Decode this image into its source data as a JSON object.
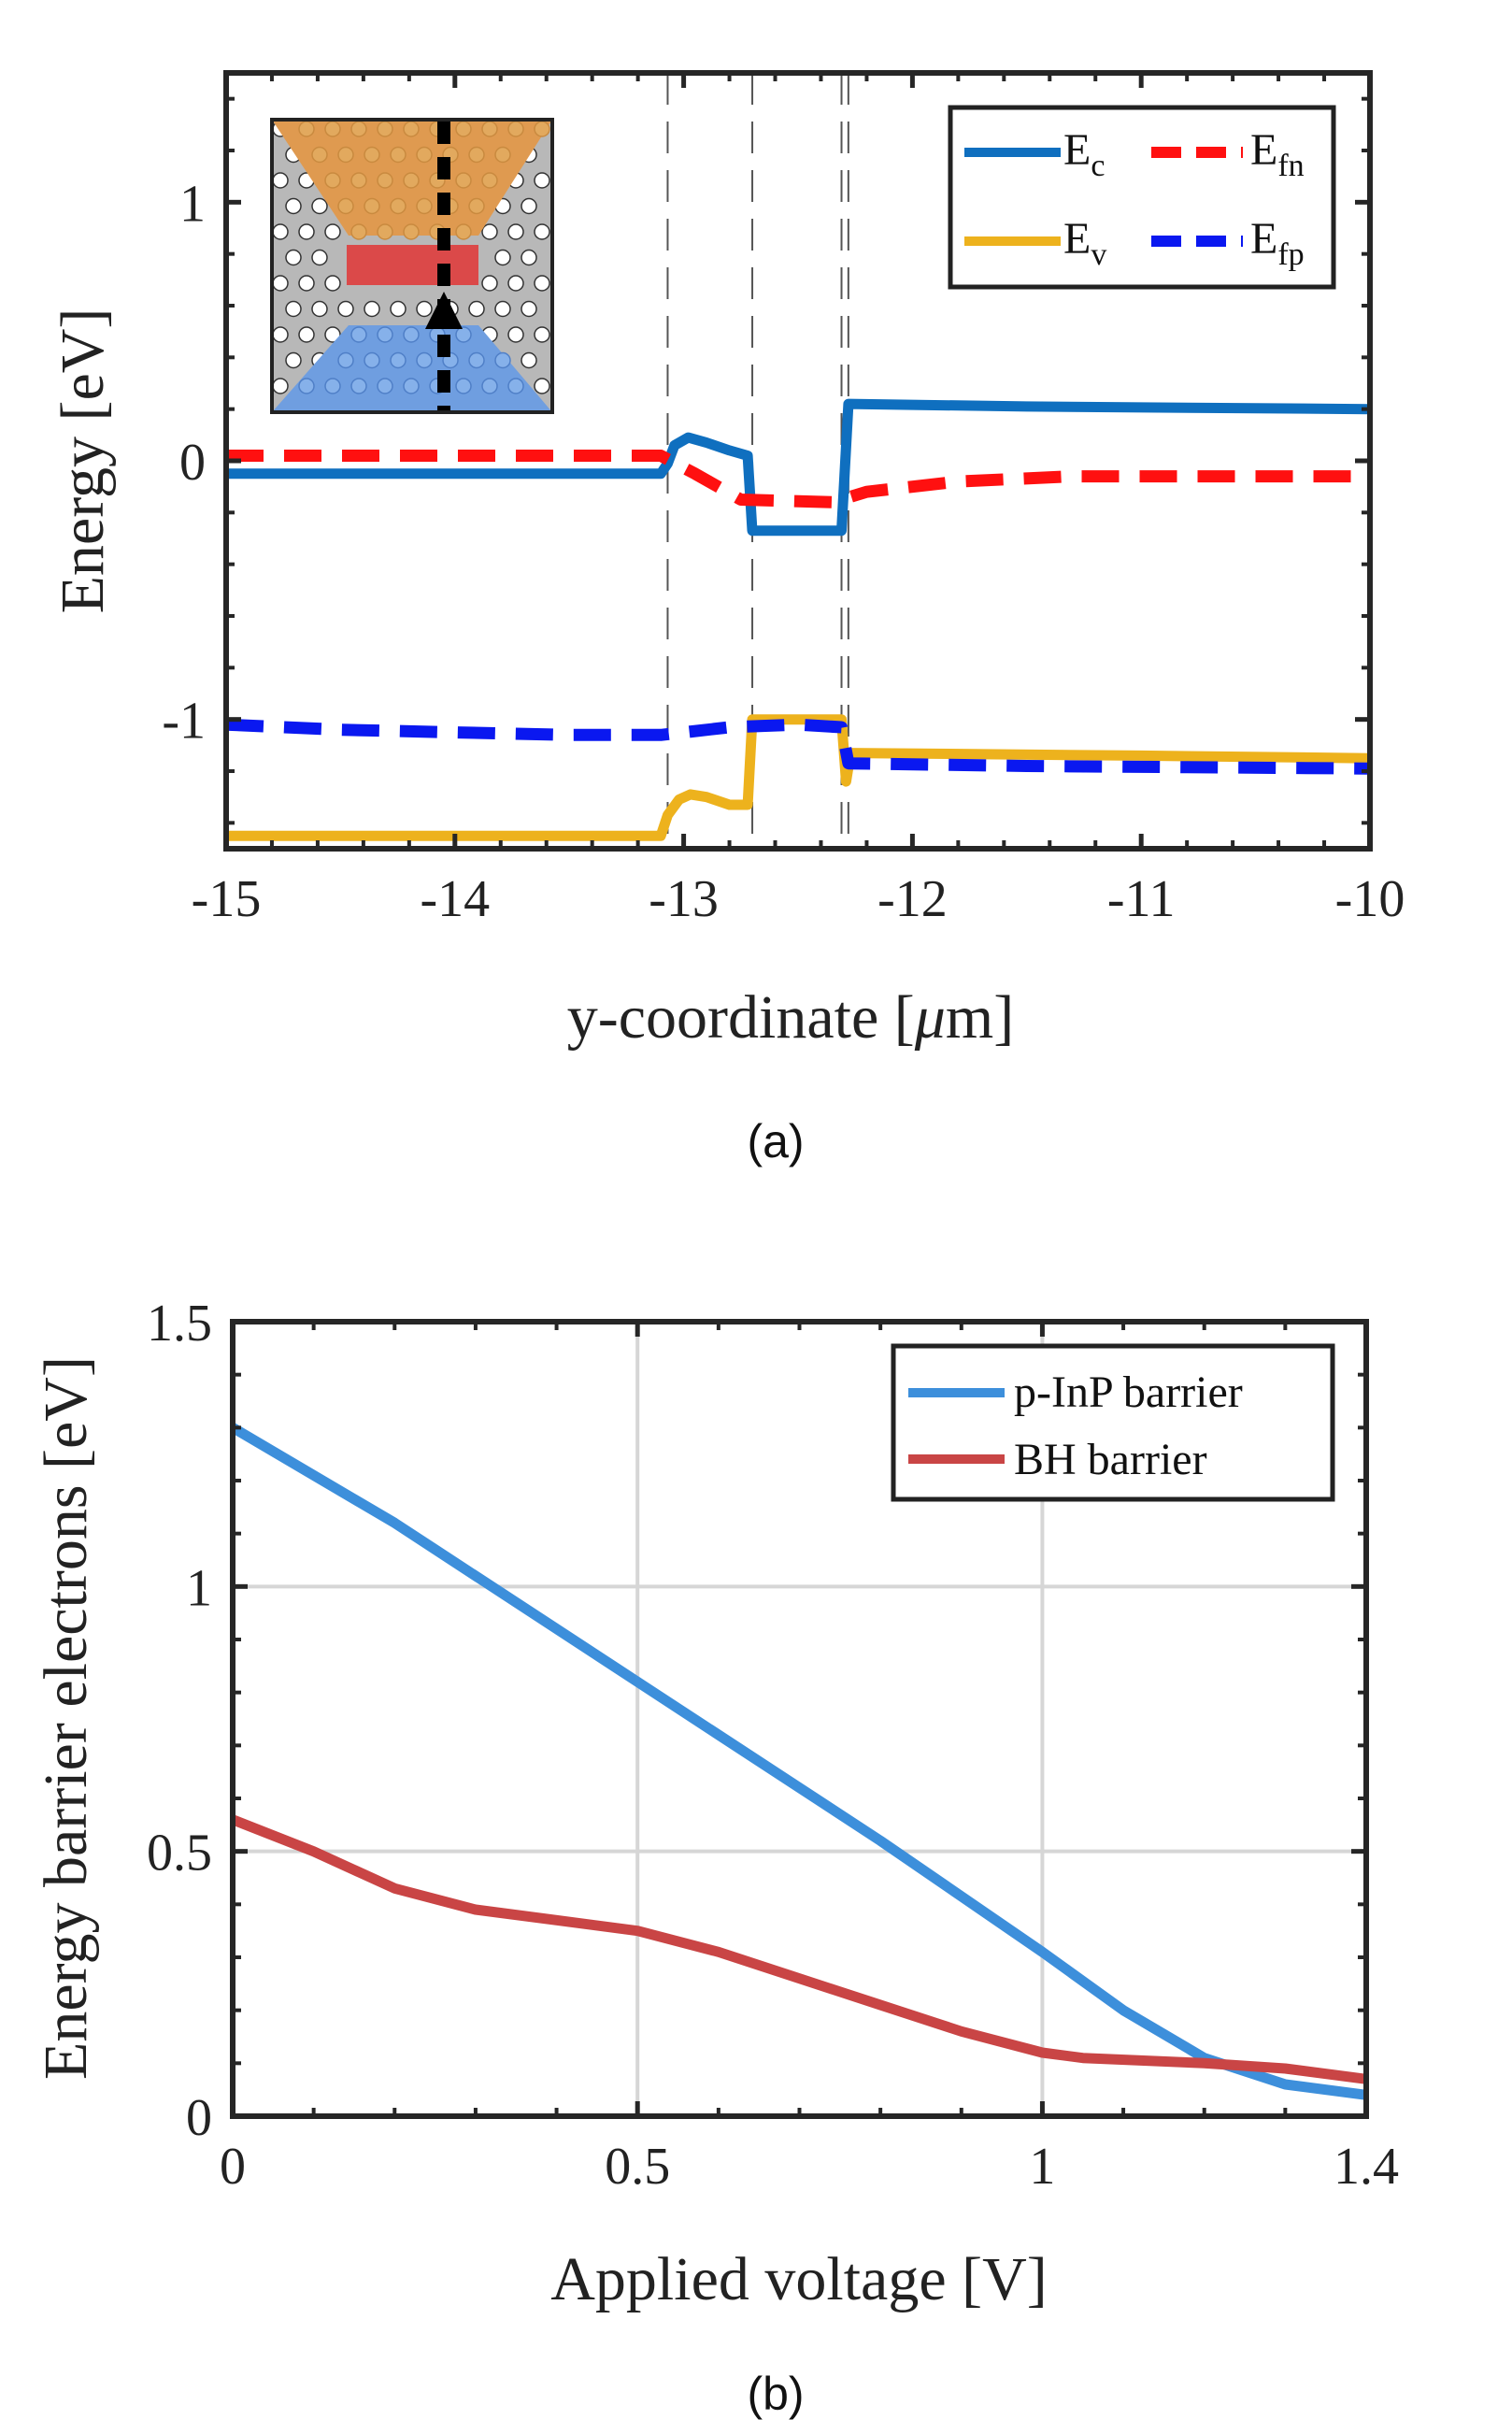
{
  "chart_data": [
    {
      "id": "a",
      "type": "line",
      "caption": "(a)",
      "xlabel": "y-coordinate [",
      "xlabel_unit_mu": "μ",
      "xlabel_unit_rest": "m]",
      "ylabel": "Energy [eV]",
      "xlim": [
        -15,
        -10
      ],
      "ylim": [
        -1.5,
        1.5
      ],
      "xticks": [
        -15,
        -14,
        -13,
        -12,
        -11,
        -10
      ],
      "xtick_labels": [
        "-15",
        "-14",
        "-13",
        "-12",
        "-11",
        "-10"
      ],
      "yticks": [
        -1,
        0,
        1
      ],
      "ytick_labels": [
        "-1",
        "0",
        "1"
      ],
      "vlines": [
        -13.07,
        -12.7,
        -12.31,
        -12.28
      ],
      "legend": {
        "position": "top-right",
        "entries": [
          {
            "main": "E",
            "sub": "c"
          },
          {
            "main": "E",
            "sub": "fn"
          },
          {
            "main": "E",
            "sub": "v"
          },
          {
            "main": "E",
            "sub": "fp"
          }
        ]
      },
      "colors": {
        "Ec": "#0f6fbf",
        "Ev": "#edb21d",
        "Efn": "#ff1010",
        "Efp": "#0a18f0"
      },
      "series": [
        {
          "name": "Ec",
          "style": "solid",
          "points": [
            [
              -15,
              -0.05
            ],
            [
              -13.1,
              -0.05
            ],
            [
              -13.07,
              -0.01
            ],
            [
              -13.04,
              0.06
            ],
            [
              -12.98,
              0.09
            ],
            [
              -12.9,
              0.07
            ],
            [
              -12.8,
              0.04
            ],
            [
              -12.72,
              0.02
            ],
            [
              -12.7,
              -0.27
            ],
            [
              -12.31,
              -0.27
            ],
            [
              -12.28,
              0.22
            ],
            [
              -11.5,
              0.21
            ],
            [
              -10,
              0.2
            ]
          ]
        },
        {
          "name": "Efn",
          "style": "dashed",
          "points": [
            [
              -15,
              0.02
            ],
            [
              -13.1,
              0.02
            ],
            [
              -12.95,
              -0.05
            ],
            [
              -12.75,
              -0.15
            ],
            [
              -12.35,
              -0.16
            ],
            [
              -12.2,
              -0.12
            ],
            [
              -11.8,
              -0.08
            ],
            [
              -11.3,
              -0.06
            ],
            [
              -10,
              -0.06
            ]
          ]
        },
        {
          "name": "Ev",
          "style": "solid",
          "points": [
            [
              -15,
              -1.45
            ],
            [
              -13.1,
              -1.45
            ],
            [
              -13.07,
              -1.37
            ],
            [
              -13.02,
              -1.31
            ],
            [
              -12.97,
              -1.29
            ],
            [
              -12.9,
              -1.3
            ],
            [
              -12.8,
              -1.33
            ],
            [
              -12.72,
              -1.33
            ],
            [
              -12.7,
              -1.0
            ],
            [
              -12.31,
              -1.0
            ],
            [
              -12.29,
              -1.24
            ],
            [
              -12.27,
              -1.13
            ],
            [
              -11,
              -1.14
            ],
            [
              -10,
              -1.15
            ]
          ]
        },
        {
          "name": "Efp",
          "style": "dashed",
          "points": [
            [
              -15,
              -1.02
            ],
            [
              -14.5,
              -1.04
            ],
            [
              -14,
              -1.05
            ],
            [
              -13.5,
              -1.06
            ],
            [
              -13.1,
              -1.06
            ],
            [
              -12.8,
              -1.03
            ],
            [
              -12.5,
              -1.02
            ],
            [
              -12.31,
              -1.03
            ],
            [
              -12.28,
              -1.17
            ],
            [
              -11.5,
              -1.18
            ],
            [
              -10,
              -1.19
            ]
          ]
        }
      ]
    },
    {
      "id": "b",
      "type": "line",
      "caption": "(b)",
      "xlabel": "Applied voltage [V]",
      "ylabel": "Energy barrier electrons [eV]",
      "xlim": [
        0,
        1.4
      ],
      "ylim": [
        0,
        1.5
      ],
      "xticks": [
        0,
        0.5,
        1,
        1.4
      ],
      "xtick_labels": [
        "0",
        "0.5",
        "1",
        "1.4"
      ],
      "yticks": [
        0,
        0.5,
        1,
        1.5
      ],
      "ytick_labels": [
        "0",
        "0.5",
        "1",
        "1.5"
      ],
      "grid": true,
      "legend": {
        "position": "top-right",
        "entries": [
          {
            "main": "p-InP barrier"
          },
          {
            "main": "BH barrier"
          }
        ]
      },
      "colors": {
        "pInP": "#3d8fdb",
        "BH": "#c94545"
      },
      "series": [
        {
          "name": "p-InP barrier",
          "style": "solid",
          "points": [
            [
              0,
              1.3
            ],
            [
              0.2,
              1.12
            ],
            [
              0.5,
              0.82
            ],
            [
              0.8,
              0.52
            ],
            [
              1.0,
              0.31
            ],
            [
              1.1,
              0.2
            ],
            [
              1.2,
              0.11
            ],
            [
              1.3,
              0.06
            ],
            [
              1.4,
              0.04
            ]
          ]
        },
        {
          "name": "BH barrier",
          "style": "solid",
          "points": [
            [
              0,
              0.56
            ],
            [
              0.1,
              0.5
            ],
            [
              0.2,
              0.43
            ],
            [
              0.3,
              0.39
            ],
            [
              0.4,
              0.37
            ],
            [
              0.5,
              0.35
            ],
            [
              0.6,
              0.31
            ],
            [
              0.7,
              0.26
            ],
            [
              0.8,
              0.21
            ],
            [
              0.9,
              0.16
            ],
            [
              1.0,
              0.12
            ],
            [
              1.05,
              0.11
            ],
            [
              1.2,
              0.1
            ],
            [
              1.3,
              0.09
            ],
            [
              1.4,
              0.07
            ]
          ]
        }
      ]
    }
  ]
}
